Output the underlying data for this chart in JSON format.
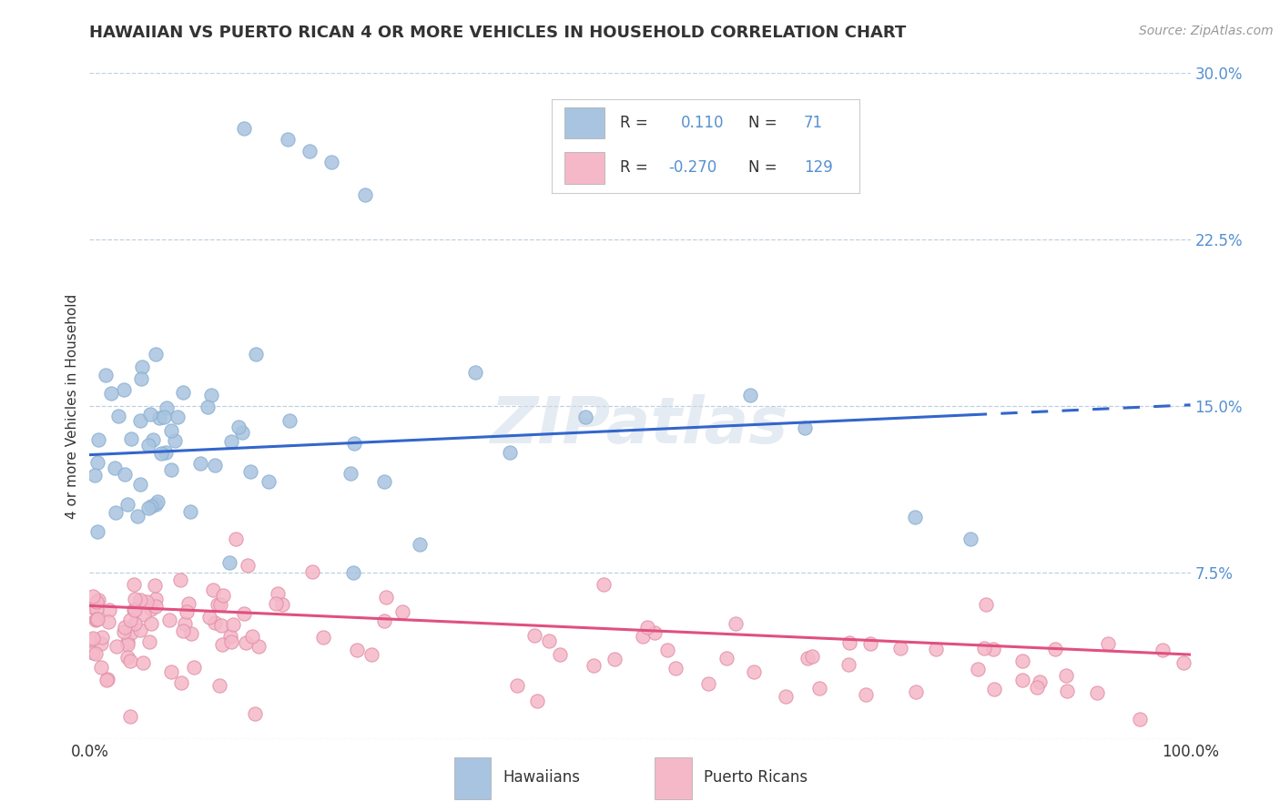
{
  "title": "HAWAIIAN VS PUERTO RICAN 4 OR MORE VEHICLES IN HOUSEHOLD CORRELATION CHART",
  "source": "Source: ZipAtlas.com",
  "ylabel": "4 or more Vehicles in Household",
  "xlim": [
    0,
    100
  ],
  "ylim": [
    0,
    30
  ],
  "ytick_vals": [
    0,
    7.5,
    15.0,
    22.5,
    30.0
  ],
  "ytick_labels": [
    "",
    "7.5%",
    "15.0%",
    "22.5%",
    "30.0%"
  ],
  "legend_r_hawaiian": "0.110",
  "legend_n_hawaiian": "71",
  "legend_r_puerto": "-0.270",
  "legend_n_puerto": "129",
  "hawaiian_color": "#a8c4e0",
  "hawaiian_edge_color": "#8aafd0",
  "hawaiian_line_color": "#3366cc",
  "puerto_color": "#f5b8c8",
  "puerto_edge_color": "#e090a8",
  "puerto_line_color": "#e05080",
  "background_color": "#ffffff",
  "grid_color": "#c0d0e0",
  "watermark": "ZIPatlas",
  "ytick_color": "#5590d0",
  "hawaiian_line_x0": 0,
  "hawaiian_line_y0": 12.8,
  "hawaiian_line_x1": 80,
  "hawaiian_line_y1": 14.6,
  "hawaiian_dash_x0": 80,
  "hawaiian_dash_y0": 14.6,
  "hawaiian_dash_x1": 100,
  "hawaiian_dash_y1": 15.05,
  "puerto_line_x0": 0,
  "puerto_line_y0": 6.0,
  "puerto_line_x1": 100,
  "puerto_line_y1": 3.8
}
